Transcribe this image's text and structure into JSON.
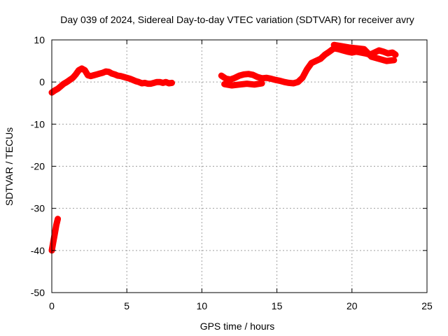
{
  "chart_data": {
    "type": "scatter",
    "title": "Day 039 of 2024, Sidereal Day-to-day VTEC variation (SDTVAR) for receiver avry",
    "xlabel": "GPS time / hours",
    "ylabel": "SDTVAR / TECUs",
    "xlim": [
      0,
      25
    ],
    "ylim": [
      -50,
      10
    ],
    "xticks": [
      0,
      5,
      10,
      15,
      20,
      25
    ],
    "yticks": [
      10,
      0,
      -10,
      -20,
      -30,
      -40,
      -50
    ],
    "grid": true,
    "series": [
      {
        "name": "SDTVAR",
        "color": "#ff0000",
        "segments": [
          {
            "x": [
              0.0,
              0.1,
              0.2,
              0.3,
              0.4
            ],
            "y": [
              -40.0,
              -38.0,
              -36.0,
              -34.0,
              -32.5
            ]
          },
          {
            "x": [
              0.0,
              0.2,
              0.4,
              0.6,
              0.8,
              1.0,
              1.2,
              1.4,
              1.6,
              1.8,
              2.0,
              2.2,
              2.4,
              2.6,
              2.8,
              3.0,
              3.2,
              3.4,
              3.6,
              3.8,
              4.0,
              4.2,
              4.4,
              4.6,
              4.8,
              5.0,
              5.2,
              5.4,
              5.6,
              5.8,
              6.0,
              6.2,
              6.4,
              6.6,
              6.8,
              7.0,
              7.2,
              7.4,
              7.6,
              7.8,
              8.0
            ],
            "y": [
              -2.5,
              -2.0,
              -1.6,
              -1.0,
              -0.4,
              0.0,
              0.5,
              1.0,
              1.8,
              2.8,
              3.2,
              2.8,
              1.6,
              1.4,
              1.6,
              1.8,
              2.0,
              2.2,
              2.5,
              2.4,
              2.0,
              1.8,
              1.5,
              1.4,
              1.2,
              1.0,
              0.8,
              0.5,
              0.2,
              0.0,
              -0.3,
              -0.2,
              -0.4,
              -0.4,
              -0.2,
              0.0,
              0.0,
              -0.2,
              0.0,
              -0.3,
              -0.2
            ]
          },
          {
            "x": [
              11.3,
              11.6,
              11.9,
              12.2,
              12.5,
              12.8,
              13.1,
              13.4,
              13.7,
              14.0,
              14.3,
              14.6,
              14.9,
              15.2,
              15.5,
              15.8,
              16.1,
              16.4,
              16.7,
              17.0,
              17.3,
              17.6,
              17.9,
              18.2,
              18.5,
              18.8,
              19.1,
              19.4,
              19.7,
              20.0,
              20.3,
              20.6,
              20.9,
              21.2,
              21.5,
              21.8,
              22.1,
              22.4,
              22.7,
              22.9
            ],
            "y": [
              1.5,
              0.8,
              0.6,
              1.0,
              1.5,
              1.8,
              1.9,
              1.7,
              1.2,
              0.9,
              1.0,
              0.8,
              0.5,
              0.3,
              0.0,
              -0.2,
              -0.3,
              0.0,
              1.0,
              3.0,
              4.5,
              5.0,
              5.5,
              6.5,
              7.2,
              8.0,
              7.8,
              7.5,
              7.2,
              7.0,
              7.2,
              7.0,
              6.8,
              6.5,
              7.0,
              7.5,
              7.2,
              6.8,
              7.0,
              6.5
            ]
          },
          {
            "x": [
              11.5,
              12.0,
              12.5,
              13.0,
              13.5,
              14.0
            ],
            "y": [
              -0.5,
              -0.8,
              -0.6,
              -0.4,
              -0.6,
              -0.3
            ]
          },
          {
            "x": [
              18.8,
              19.3,
              19.8,
              20.3,
              20.8,
              21.3,
              21.8,
              22.3,
              22.8
            ],
            "y": [
              8.8,
              8.5,
              8.2,
              8.0,
              7.8,
              6.0,
              5.5,
              5.0,
              5.2
            ]
          }
        ]
      }
    ]
  }
}
